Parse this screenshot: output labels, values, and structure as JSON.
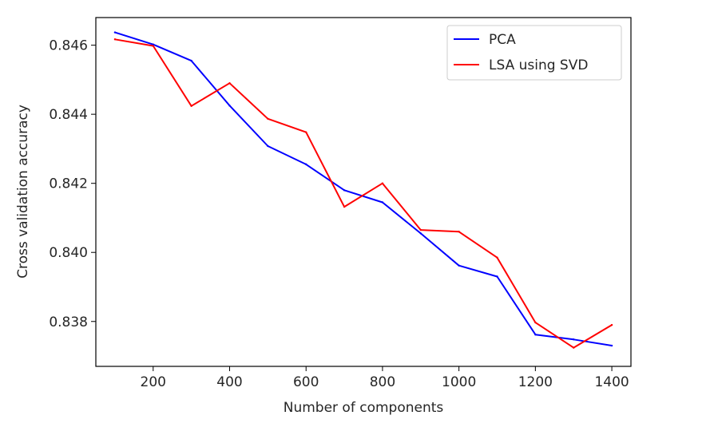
{
  "chart_data": {
    "type": "line",
    "xlabel": "Number of components",
    "ylabel": "Cross validation accuracy",
    "xlim": [
      50,
      1450
    ],
    "ylim": [
      0.8367,
      0.8468
    ],
    "xticks": [
      200,
      400,
      600,
      800,
      1000,
      1200,
      1400
    ],
    "yticks": [
      0.838,
      0.84,
      0.842,
      0.844,
      0.846
    ],
    "xtick_labels": [
      "200",
      "400",
      "600",
      "800",
      "1000",
      "1200",
      "1400"
    ],
    "ytick_labels": [
      "0.838",
      "0.840",
      "0.842",
      "0.844",
      "0.846"
    ],
    "grid": false,
    "legend_position": "top-right",
    "x": [
      100,
      200,
      300,
      400,
      500,
      600,
      700,
      800,
      900,
      1000,
      1100,
      1200,
      1300,
      1400
    ],
    "series": [
      {
        "name": "PCA",
        "color": "#0000ff",
        "values": [
          0.84637,
          0.84602,
          0.84555,
          0.84425,
          0.84308,
          0.84255,
          0.8418,
          0.84145,
          0.84055,
          0.83962,
          0.8393,
          0.83762,
          0.83748,
          0.8373
        ]
      },
      {
        "name": "LSA using SVD",
        "color": "#ff0000",
        "values": [
          0.84617,
          0.84598,
          0.84424,
          0.8449,
          0.84387,
          0.84348,
          0.84132,
          0.842,
          0.84065,
          0.8406,
          0.83985,
          0.83797,
          0.83724,
          0.8379
        ]
      }
    ]
  }
}
